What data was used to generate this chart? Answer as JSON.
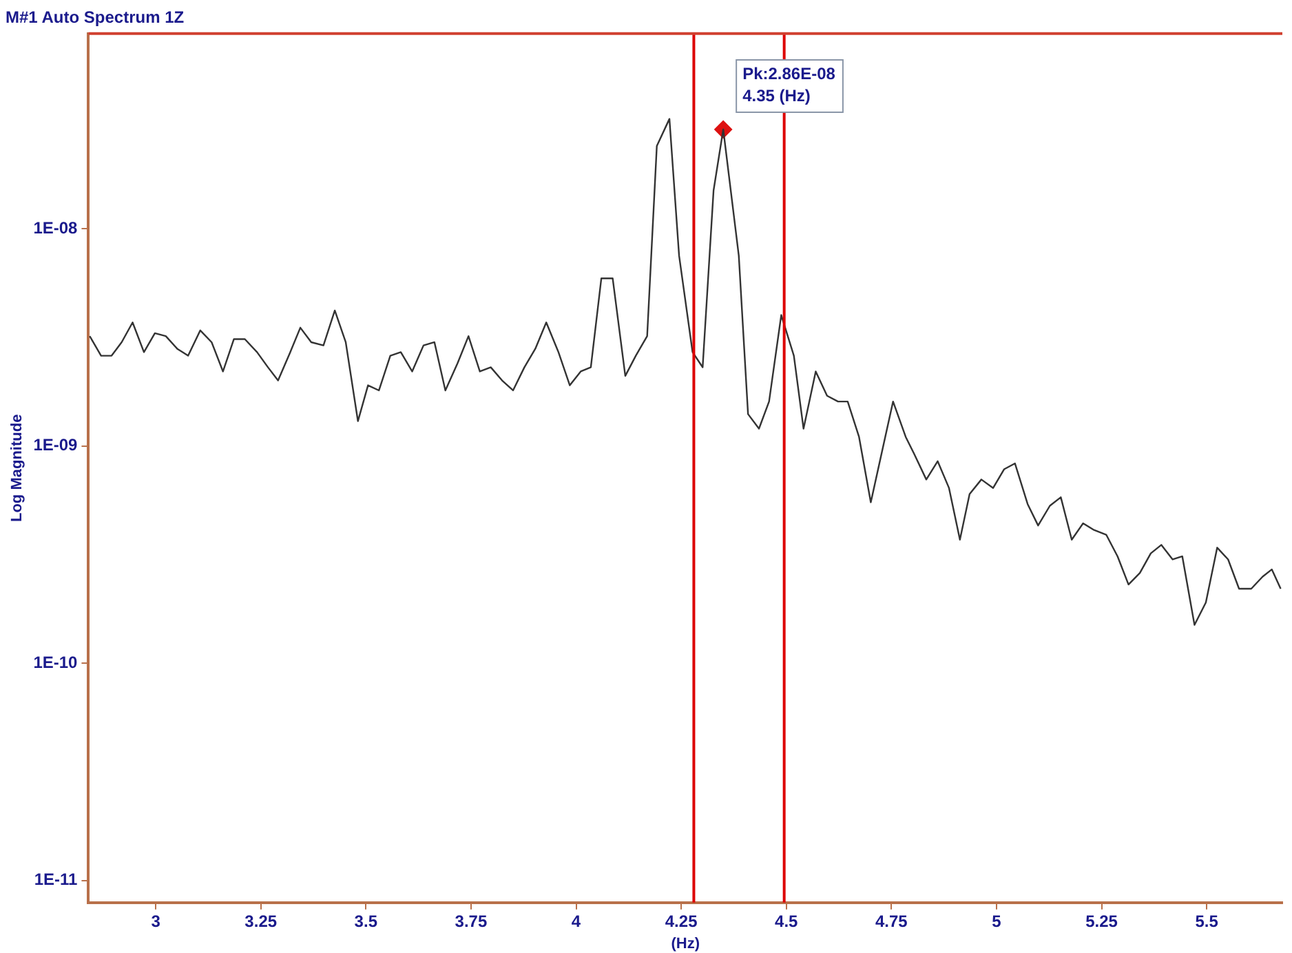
{
  "chart_data": {
    "type": "line",
    "title": "M#1 Auto Spectrum 1Z",
    "xlabel": "(Hz)",
    "ylabel": "Log Magnitude",
    "log": "y",
    "grid": false,
    "legend": false,
    "marker": "none",
    "xlim": [
      2.84,
      5.68
    ],
    "xticks": [
      3,
      3.25,
      3.5,
      3.75,
      4,
      4.25,
      4.5,
      4.75,
      5,
      5.25,
      5.5
    ],
    "ylim": [
      7.9e-12,
      7.9e-08
    ],
    "yticks": [
      {
        "value": 1e-08,
        "label": "1E-08"
      },
      {
        "value": 1e-09,
        "label": "1E-09"
      },
      {
        "value": 1e-10,
        "label": "1E-10"
      },
      {
        "value": 1e-11,
        "label": "1E-11"
      }
    ],
    "series": [
      {
        "type": "line",
        "color": "#333333",
        "line_style": "solid",
        "x": [
          2.843,
          2.87,
          2.895,
          2.919,
          2.945,
          2.972,
          2.998,
          3.024,
          3.051,
          3.077,
          3.106,
          3.133,
          3.16,
          3.186,
          3.212,
          3.241,
          3.267,
          3.291,
          3.32,
          3.344,
          3.37,
          3.399,
          3.426,
          3.452,
          3.481,
          3.505,
          3.531,
          3.558,
          3.583,
          3.61,
          3.637,
          3.663,
          3.689,
          3.718,
          3.744,
          3.771,
          3.797,
          3.824,
          3.85,
          3.877,
          3.903,
          3.929,
          3.958,
          3.985,
          4.011,
          4.035,
          4.06,
          4.087,
          4.117,
          4.142,
          4.169,
          4.192,
          4.222,
          4.245,
          4.277,
          4.301,
          4.327,
          4.35,
          4.387,
          4.409,
          4.435,
          4.459,
          4.488,
          4.518,
          4.541,
          4.57,
          4.597,
          4.623,
          4.646,
          4.673,
          4.701,
          4.754,
          4.784,
          4.804,
          4.833,
          4.86,
          4.887,
          4.913,
          4.936,
          4.964,
          4.992,
          5.018,
          5.044,
          5.074,
          5.099,
          5.127,
          5.153,
          5.179,
          5.206,
          5.232,
          5.261,
          5.288,
          5.314,
          5.341,
          5.367,
          5.392,
          5.419,
          5.442,
          5.471,
          5.498,
          5.525,
          5.551,
          5.577,
          5.606,
          5.633,
          5.655,
          5.676
        ],
        "values": [
          3.2e-09,
          2.6e-09,
          2.6e-09,
          3e-09,
          3.7e-09,
          2.7e-09,
          3.3e-09,
          3.2e-09,
          2.8e-09,
          2.6e-09,
          3.4e-09,
          3e-09,
          2.2e-09,
          3.1e-09,
          3.1e-09,
          2.7e-09,
          2.3e-09,
          2e-09,
          2.7e-09,
          3.5e-09,
          3e-09,
          2.9e-09,
          4.2e-09,
          3e-09,
          1.3e-09,
          1.9e-09,
          1.8e-09,
          2.6e-09,
          2.7e-09,
          2.2e-09,
          2.9e-09,
          3e-09,
          1.8e-09,
          2.4e-09,
          3.2e-09,
          2.2e-09,
          2.3e-09,
          2e-09,
          1.8e-09,
          2.3e-09,
          2.8e-09,
          3.7e-09,
          2.7e-09,
          1.9e-09,
          2.2e-09,
          2.3e-09,
          5.9e-09,
          5.9e-09,
          2.1e-09,
          2.6e-09,
          3.2e-09,
          2.4e-08,
          3.2e-08,
          7.5e-09,
          2.7e-09,
          2.3e-09,
          1.5e-08,
          2.86e-08,
          7.5e-09,
          1.4e-09,
          1.2e-09,
          1.6e-09,
          4e-09,
          2.6e-09,
          1.2e-09,
          2.2e-09,
          1.7e-09,
          1.6e-09,
          1.6e-09,
          1.1e-09,
          5.5e-10,
          1.6e-09,
          1.1e-09,
          9.2e-10,
          7e-10,
          8.5e-10,
          6.4e-10,
          3.7e-10,
          6e-10,
          7e-10,
          6.4e-10,
          7.8e-10,
          8.3e-10,
          5.4e-10,
          4.3e-10,
          5.3e-10,
          5.8e-10,
          3.7e-10,
          4.4e-10,
          4.1e-10,
          3.9e-10,
          3.1e-10,
          2.3e-10,
          2.6e-10,
          3.2e-10,
          3.5e-10,
          3e-10,
          3.1e-10,
          1.5e-10,
          1.9e-10,
          3.4e-10,
          3e-10,
          2.2e-10,
          2.2e-10,
          2.5e-10,
          2.7e-10,
          2.2e-10
        ]
      },
      {
        "type": "scatter",
        "color": "#dd1111",
        "marker": "diamond",
        "x": [
          4.35
        ],
        "values": [
          2.86e-08
        ]
      }
    ],
    "ref_lines": [
      {
        "axis": "x",
        "value": 4.28,
        "color": "#dd0000"
      },
      {
        "axis": "x",
        "value": 4.495,
        "color": "#dd0000"
      }
    ],
    "annotations": [
      "Pk:2.86E-08\n4.35 (Hz)"
    ]
  }
}
